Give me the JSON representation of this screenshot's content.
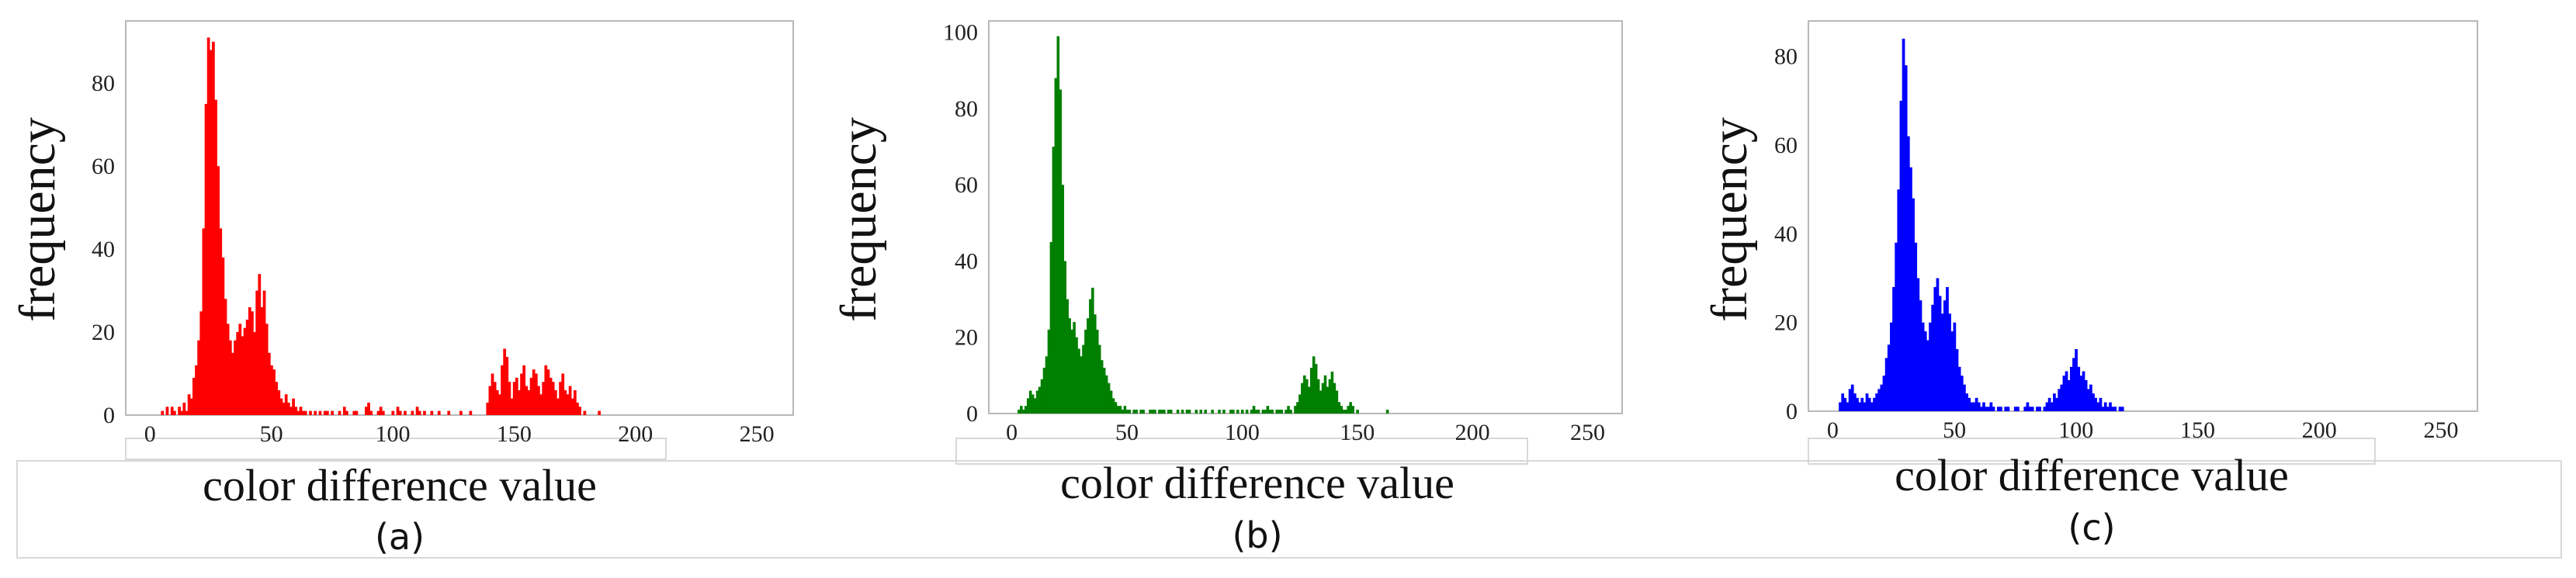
{
  "chart_data": [
    {
      "type": "bar",
      "panel_label": "(a)",
      "xlabel": "color difference value",
      "ylabel": "frequency",
      "xlim": [
        -10,
        265
      ],
      "ylim": [
        0,
        95
      ],
      "xticks": [
        0,
        50,
        100,
        150,
        200,
        250
      ],
      "yticks": [
        0,
        20,
        40,
        60,
        80
      ],
      "color": "#ff0000",
      "x_start": 5,
      "values": [
        1,
        0,
        2,
        0,
        2,
        1,
        0,
        2,
        1,
        3,
        1,
        5,
        4,
        9,
        12,
        18,
        25,
        45,
        75,
        91,
        88,
        90,
        76,
        60,
        45,
        38,
        28,
        22,
        18,
        15,
        18,
        20,
        22,
        19,
        21,
        23,
        26,
        25,
        20,
        30,
        34,
        26,
        30,
        22,
        15,
        12,
        11,
        8,
        6,
        4,
        3,
        5,
        3,
        2,
        4,
        2,
        1,
        2,
        1,
        1,
        0,
        1,
        0,
        1,
        0,
        1,
        0,
        1,
        1,
        0,
        1,
        0,
        0,
        1,
        0,
        2,
        1,
        0,
        0,
        1,
        1,
        0,
        0,
        0,
        2,
        3,
        1,
        0,
        0,
        1,
        2,
        1,
        0,
        0,
        0,
        1,
        0,
        2,
        1,
        0,
        1,
        0,
        0,
        1,
        0,
        2,
        1,
        0,
        1,
        0,
        0,
        1,
        0,
        0,
        1,
        0,
        0,
        0,
        1,
        0,
        0,
        0,
        0,
        1,
        0,
        0,
        0,
        1,
        0,
        0,
        0,
        0,
        0,
        0,
        3,
        7,
        10,
        8,
        6,
        5,
        12,
        16,
        14,
        8,
        4,
        8,
        9,
        6,
        10,
        12,
        7,
        6,
        9,
        11,
        10,
        7,
        5,
        8,
        12,
        11,
        9,
        8,
        6,
        4,
        8,
        10,
        6,
        5,
        7,
        4,
        6,
        3,
        2,
        0,
        1,
        0,
        0,
        0,
        0,
        0,
        1
      ]
    },
    {
      "type": "bar",
      "panel_label": "(b)",
      "xlabel": "color difference value",
      "ylabel": "frequency",
      "xlim": [
        -10,
        265
      ],
      "ylim": [
        0,
        103
      ],
      "xticks": [
        0,
        50,
        100,
        150,
        200,
        250
      ],
      "yticks": [
        0,
        20,
        40,
        60,
        80,
        100
      ],
      "color": "#007f00",
      "x_start": 3,
      "values": [
        1,
        2,
        1,
        2,
        4,
        6,
        5,
        4,
        6,
        7,
        9,
        12,
        15,
        22,
        45,
        70,
        88,
        99,
        85,
        60,
        40,
        30,
        25,
        22,
        24,
        20,
        17,
        15,
        18,
        22,
        25,
        30,
        33,
        26,
        22,
        18,
        14,
        12,
        10,
        8,
        6,
        4,
        3,
        2,
        2,
        1,
        2,
        1,
        1,
        0,
        1,
        1,
        0,
        1,
        1,
        0,
        0,
        1,
        1,
        1,
        0,
        1,
        1,
        1,
        0,
        1,
        1,
        0,
        0,
        1,
        0,
        1,
        0,
        1,
        1,
        0,
        0,
        1,
        0,
        1,
        0,
        1,
        0,
        0,
        1,
        0,
        0,
        1,
        0,
        1,
        0,
        0,
        1,
        1,
        0,
        1,
        0,
        1,
        0,
        1,
        0,
        1,
        2,
        1,
        1,
        0,
        1,
        1,
        2,
        1,
        1,
        0,
        1,
        1,
        1,
        0,
        1,
        2,
        1,
        0,
        2,
        3,
        5,
        8,
        10,
        9,
        7,
        12,
        15,
        13,
        9,
        6,
        8,
        10,
        7,
        9,
        11,
        8,
        6,
        3,
        2,
        1,
        1,
        2,
        3,
        2,
        0,
        1,
        0,
        0,
        0,
        0,
        0,
        0,
        0,
        0,
        0,
        0,
        0,
        0,
        1,
        0,
        0,
        0,
        0,
        0,
        0,
        0,
        0
      ]
    },
    {
      "type": "bar",
      "panel_label": "(c)",
      "xlabel": "color difference value",
      "ylabel": "frequency",
      "xlim": [
        -10,
        265
      ],
      "ylim": [
        0,
        88
      ],
      "xticks": [
        0,
        50,
        100,
        150,
        200,
        250
      ],
      "yticks": [
        0,
        20,
        40,
        60,
        80
      ],
      "color": "#0000ff",
      "x_start": 3,
      "values": [
        2,
        4,
        3,
        2,
        5,
        6,
        4,
        3,
        2,
        3,
        2,
        4,
        3,
        2,
        3,
        4,
        5,
        6,
        8,
        12,
        15,
        20,
        28,
        38,
        50,
        70,
        84,
        78,
        62,
        55,
        48,
        38,
        30,
        25,
        20,
        18,
        16,
        20,
        24,
        28,
        30,
        26,
        22,
        25,
        28,
        22,
        18,
        20,
        14,
        10,
        8,
        6,
        4,
        3,
        2,
        2,
        3,
        2,
        1,
        2,
        1,
        1,
        2,
        1,
        0,
        1,
        1,
        0,
        1,
        1,
        0,
        0,
        1,
        1,
        0,
        0,
        1,
        2,
        1,
        1,
        0,
        1,
        1,
        0,
        1,
        2,
        3,
        2,
        4,
        3,
        5,
        6,
        8,
        9,
        7,
        10,
        12,
        14,
        10,
        8,
        9,
        7,
        5,
        6,
        4,
        3,
        2,
        3,
        1,
        2,
        1,
        2,
        1,
        1,
        0,
        1,
        1
      ]
    }
  ]
}
